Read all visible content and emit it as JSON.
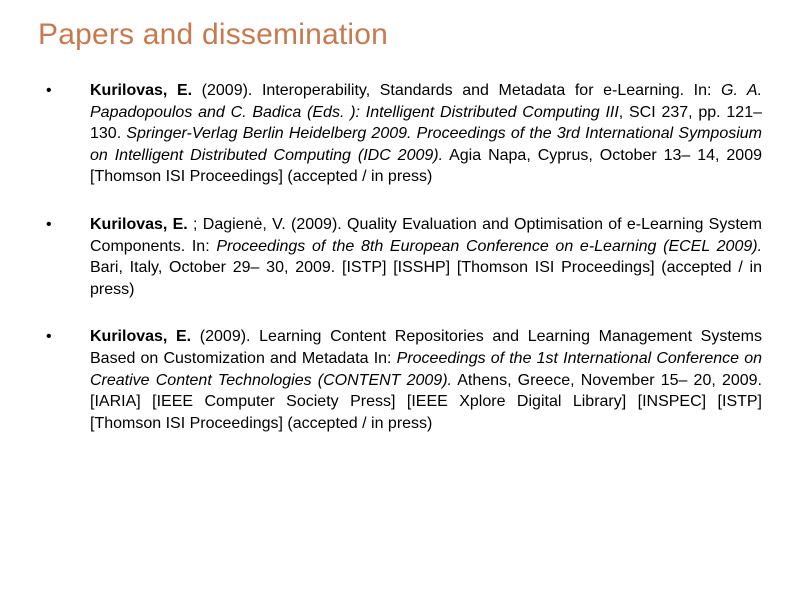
{
  "title": "Papers and dissemination",
  "title_color": "#c77a4f",
  "title_fontsize": 30,
  "body_fontsize": 16,
  "line_height": 1.35,
  "background_color": "#ffffff",
  "text_color": "#000000",
  "bullet_items": [
    {
      "author_bold": "Kurilovas, E.",
      "year_plain": " (2009). Interoperability, Standards and Metadata for e-Learning. In: ",
      "in_italic": "G. A. Papadopoulos and C. Badica (Eds. ): Intelligent Distributed Computing III",
      "mid_plain": ", SCI 237, pp. 121– 130. ",
      "pub_italic": "Springer-Verlag Berlin Heidelberg 2009. Proceedings of the 3rd International Symposium on Intelligent Distributed Computing (IDC 2009).",
      "tail_plain": " Agia Napa, Cyprus, October 13– 14, 2009 [Thomson ISI Proceedings] (accepted / in press)"
    },
    {
      "author_bold": "Kurilovas, E.",
      "year_plain": " ; Dagienė, V. (2009). Quality Evaluation and Optimisation of e-Learning System Components. In: ",
      "in_italic": "Proceedings of the 8th European Conference on e-Learning (ECEL 2009).",
      "mid_plain": " Bari, Italy, October 29– 30, 2009. [ISTP] [ISSHP] [Thomson ISI Proceedings] (accepted / in press)",
      "pub_italic": "",
      "tail_plain": ""
    },
    {
      "author_bold": "Kurilovas, E.",
      "year_plain": " (2009). Learning Content Repositories and Learning Management Systems Based on Customization and Metadata In: ",
      "in_italic": "Proceedings of the 1st International Conference on Creative Content Technologies (CONTENT 2009).",
      "mid_plain": " Athens, Greece, November 15– 20, 2009. [IARIA] [IEEE Computer Society Press] [IEEE Xplore Digital Library] [INSPEC] [ISTP] [Thomson ISI Proceedings] (accepted / in press)",
      "pub_italic": "",
      "tail_plain": ""
    }
  ]
}
